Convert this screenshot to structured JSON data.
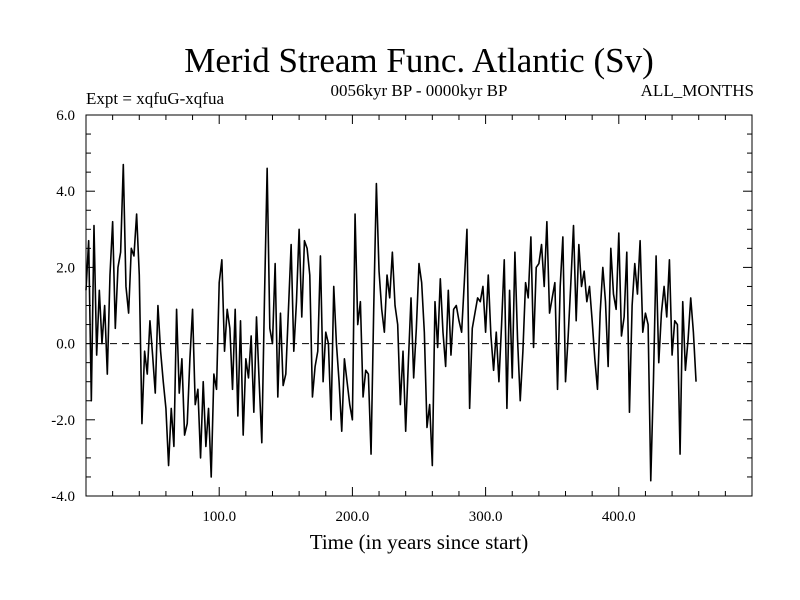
{
  "chart_data": {
    "type": "line",
    "title": "Merid Stream Func. Atlantic (Sv)",
    "subtitle_left": "Expt = xqfuG-xqfua",
    "subtitle_center": "0056kyr BP - 0000kyr BP",
    "subtitle_right": "ALL_MONTHS",
    "xlabel": "Time (in years since start)",
    "ylabel": "",
    "xlim": [
      0,
      500
    ],
    "ylim": [
      -4.0,
      6.0
    ],
    "x_ticks": [
      100,
      200,
      300,
      400
    ],
    "x_tick_labels": [
      "100.0",
      "200.0",
      "300.0",
      "400.0"
    ],
    "y_ticks": [
      -4,
      -2,
      0,
      2,
      4,
      6
    ],
    "y_tick_labels": [
      "-4.0",
      "-2.0",
      "0.0",
      "2.0",
      "4.0",
      "6.0"
    ],
    "zero_line": true,
    "zero_line_style": "dashed",
    "line_color": "#000000",
    "series": [
      {
        "name": "xqfuG-xqfua",
        "x_start": 0,
        "x_step": 2,
        "values": [
          1.4,
          2.7,
          -1.5,
          3.1,
          -0.3,
          1.4,
          0.0,
          1.0,
          -0.8,
          1.8,
          3.2,
          0.4,
          2.0,
          2.4,
          4.7,
          1.5,
          0.8,
          2.5,
          2.3,
          3.4,
          1.8,
          -2.1,
          -0.2,
          -0.8,
          0.6,
          -0.3,
          -1.3,
          1.0,
          -0.2,
          -1.0,
          -1.7,
          -3.2,
          -1.7,
          -2.7,
          0.9,
          -1.3,
          -0.4,
          -2.4,
          -2.1,
          -0.4,
          0.9,
          -1.6,
          -1.2,
          -3.0,
          -1.0,
          -2.7,
          -1.7,
          -3.5,
          -0.8,
          -1.2,
          1.6,
          2.2,
          -0.2,
          0.9,
          0.4,
          -1.2,
          0.9,
          -1.9,
          0.6,
          -2.4,
          -0.4,
          -0.9,
          0.2,
          -1.8,
          0.7,
          -1.0,
          -2.6,
          1.2,
          4.6,
          0.4,
          0.0,
          2.1,
          -1.4,
          0.8,
          -1.1,
          -0.8,
          0.9,
          2.6,
          -0.2,
          1.1,
          3.0,
          0.7,
          2.7,
          2.5,
          1.8,
          -1.4,
          -0.6,
          -0.2,
          2.3,
          -1.0,
          0.3,
          0.0,
          -2.0,
          1.5,
          0.0,
          -1.0,
          -2.3,
          -0.4,
          -1.0,
          -1.6,
          -2.0,
          3.4,
          0.5,
          1.1,
          -1.4,
          -0.7,
          -0.8,
          -2.9,
          0.9,
          4.2,
          1.9,
          0.9,
          0.3,
          1.8,
          1.2,
          2.4,
          1.0,
          0.5,
          -1.6,
          -0.2,
          -2.3,
          -0.5,
          1.2,
          -0.9,
          0.4,
          2.1,
          1.6,
          0.3,
          -2.2,
          -1.6,
          -3.2,
          1.1,
          -0.1,
          1.7,
          0.3,
          -0.6,
          1.4,
          -0.3,
          0.9,
          1.0,
          0.6,
          0.3,
          1.6,
          3.0,
          -1.7,
          0.4,
          0.8,
          1.2,
          1.1,
          1.5,
          0.3,
          1.8,
          0.2,
          -0.7,
          0.3,
          -1.0,
          0.5,
          2.2,
          -1.7,
          1.4,
          -0.9,
          2.4,
          0.1,
          -1.5,
          -0.2,
          1.6,
          1.2,
          2.8,
          -0.1,
          2.0,
          2.1,
          2.6,
          1.5,
          3.2,
          0.8,
          1.2,
          1.6,
          -1.2,
          1.5,
          2.8,
          -1.0,
          0.2,
          1.6,
          3.1,
          0.6,
          2.6,
          1.5,
          1.9,
          1.1,
          1.5,
          0.6,
          -0.4,
          -1.2,
          0.8,
          2.0,
          1.1,
          -0.6,
          2.5,
          1.3,
          0.9,
          2.9,
          0.2,
          0.7,
          2.4,
          -1.8,
          1.0,
          2.1,
          1.3,
          2.7,
          0.3,
          0.8,
          0.5,
          -3.6,
          -1.0,
          2.3,
          -0.5,
          0.8,
          1.5,
          0.7,
          2.2,
          -0.3,
          0.6,
          0.5,
          -2.9,
          1.1,
          -0.7,
          0.1,
          1.2,
          0.3,
          -1.0
        ]
      }
    ]
  }
}
